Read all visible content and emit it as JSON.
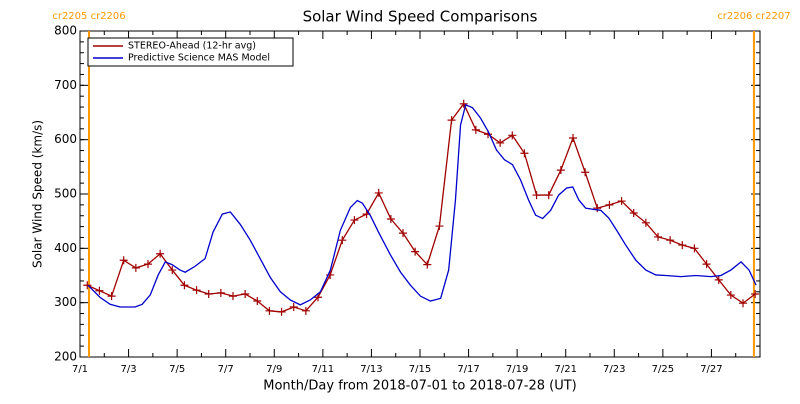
{
  "chart_data": {
    "type": "line",
    "title": "Solar Wind Speed Comparisons",
    "xlabel": "Month/Day from 2018-07-01 to 2018-07-28 (UT)",
    "ylabel": "Solar Wind Speed (km/s)",
    "xlim": [
      0,
      28
    ],
    "ylim": [
      200,
      800
    ],
    "xticks": [
      {
        "value": 0,
        "label": "7/1"
      },
      {
        "value": 2,
        "label": "7/3"
      },
      {
        "value": 4,
        "label": "7/5"
      },
      {
        "value": 6,
        "label": "7/7"
      },
      {
        "value": 8,
        "label": "7/9"
      },
      {
        "value": 10,
        "label": "7/11"
      },
      {
        "value": 12,
        "label": "7/13"
      },
      {
        "value": 14,
        "label": "7/15"
      },
      {
        "value": 16,
        "label": "7/17"
      },
      {
        "value": 18,
        "label": "7/19"
      },
      {
        "value": 20,
        "label": "7/21"
      },
      {
        "value": 22,
        "label": "7/23"
      },
      {
        "value": 24,
        "label": "7/25"
      },
      {
        "value": 26,
        "label": "7/27"
      }
    ],
    "yticks": [
      200,
      300,
      400,
      500,
      600,
      700,
      800
    ],
    "legend": "upper left",
    "annotations": [
      {
        "x": 0.37,
        "label": "cr2205 cr2206",
        "color": "#ff9900"
      },
      {
        "x": 27.75,
        "label": "cr2206 cr2207",
        "color": "#ff9900"
      }
    ],
    "series": [
      {
        "name": "STEREO-Ahead (12-hr avg)",
        "color": "#a00000",
        "markers": true,
        "x": [
          0.3,
          0.8,
          1.3,
          1.8,
          2.3,
          2.8,
          3.3,
          3.8,
          4.3,
          4.8,
          5.3,
          5.8,
          6.3,
          6.8,
          7.3,
          7.8,
          8.3,
          8.8,
          9.3,
          9.8,
          10.3,
          10.8,
          11.3,
          11.8,
          12.3,
          12.8,
          13.3,
          13.8,
          14.3,
          14.8,
          15.3,
          15.8,
          16.3,
          16.8,
          17.3,
          17.8,
          18.3,
          18.8,
          19.3,
          19.8,
          20.3,
          20.8,
          21.3,
          21.8,
          22.3,
          22.8,
          23.3,
          23.8,
          24.3,
          24.8,
          25.3,
          25.8,
          26.3,
          26.8,
          27.3,
          27.8
        ],
        "values": [
          332,
          322,
          312,
          378,
          364,
          371,
          390,
          360,
          332,
          323,
          316,
          318,
          312,
          316,
          303,
          285,
          283,
          292,
          285,
          310,
          351,
          415,
          452,
          463,
          502,
          454,
          428,
          394,
          370,
          441,
          636,
          666,
          618,
          610,
          594,
          608,
          575,
          498,
          498,
          544,
          603,
          540,
          474,
          480,
          487,
          465,
          447,
          421,
          415,
          406,
          400,
          371,
          342,
          314,
          299,
          316
        ]
      },
      {
        "name": "Predictive Science MAS Model",
        "color": "#0000cc",
        "markers": false,
        "x": [
          0.33,
          0.82,
          1.24,
          1.65,
          2.27,
          2.56,
          2.89,
          3.22,
          3.51,
          3.79,
          4.12,
          4.33,
          4.74,
          5.15,
          5.48,
          5.86,
          6.19,
          6.6,
          7.01,
          7.42,
          7.84,
          8.25,
          8.66,
          9.07,
          9.48,
          9.9,
          10.31,
          10.72,
          11.13,
          11.42,
          11.63,
          11.96,
          12.29,
          12.78,
          13.2,
          13.61,
          14.02,
          14.43,
          14.85,
          15.18,
          15.46,
          15.67,
          15.88,
          16.16,
          16.49,
          16.82,
          17.15,
          17.48,
          17.81,
          18.14,
          18.47,
          18.76,
          19.05,
          19.38,
          19.71,
          20.04,
          20.29,
          20.54,
          20.82,
          21.11,
          21.44,
          21.77,
          22.1,
          22.47,
          22.89,
          23.3,
          23.71,
          24.12,
          24.74,
          25.36,
          25.98,
          26.39,
          26.8,
          27.22,
          27.55,
          27.84
        ],
        "values": [
          332,
          310,
          297,
          292,
          292,
          297,
          314,
          351,
          375,
          370,
          360,
          356,
          367,
          381,
          430,
          463,
          467,
          444,
          415,
          381,
          346,
          320,
          305,
          296,
          305,
          320,
          360,
          433,
          475,
          488,
          483,
          460,
          430,
          388,
          356,
          332,
          312,
          303,
          308,
          360,
          489,
          627,
          664,
          659,
          640,
          614,
          581,
          563,
          554,
          526,
          489,
          461,
          455,
          470,
          498,
          511,
          513,
          489,
          474,
          472,
          470,
          456,
          433,
          406,
          378,
          360,
          351,
          350,
          348,
          350,
          348,
          350,
          360,
          375,
          360,
          332
        ]
      }
    ]
  }
}
